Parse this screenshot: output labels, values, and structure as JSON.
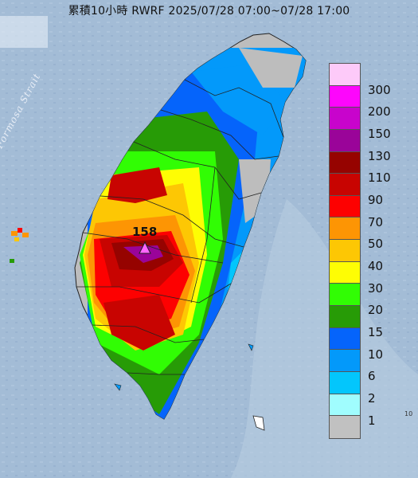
{
  "title": "累積10小時 RWRF 2025/07/28 07:00~07/28 17:00",
  "strait_label": "Formosa Strait",
  "max_marker": {
    "value": "158",
    "icon": "triangle-marker-icon",
    "color": "#ff66ff"
  },
  "legend": {
    "items": [
      {
        "label": "300",
        "color": "#fdcaf9"
      },
      {
        "label": "200",
        "color": "#fd06fc"
      },
      {
        "label": "150",
        "color": "#c804cc"
      },
      {
        "label": "130",
        "color": "#9a0499"
      },
      {
        "label": "110",
        "color": "#960300"
      },
      {
        "label": "90",
        "color": "#c80401"
      },
      {
        "label": "70",
        "color": "#fd0101"
      },
      {
        "label": "50",
        "color": "#fd9504"
      },
      {
        "label": "40",
        "color": "#fdc704"
      },
      {
        "label": "30",
        "color": "#fefd04"
      },
      {
        "label": "20",
        "color": "#31fd04"
      },
      {
        "label": "15",
        "color": "#279b06"
      },
      {
        "label": "10",
        "color": "#0564fb"
      },
      {
        "label": "6",
        "color": "#0399fa"
      },
      {
        "label": "2",
        "color": "#03c6fc"
      },
      {
        "label": "1",
        "color": "#a0fdfe"
      },
      {
        "label": "",
        "color": "#c1c1c1"
      }
    ]
  },
  "corner_text": "10"
}
